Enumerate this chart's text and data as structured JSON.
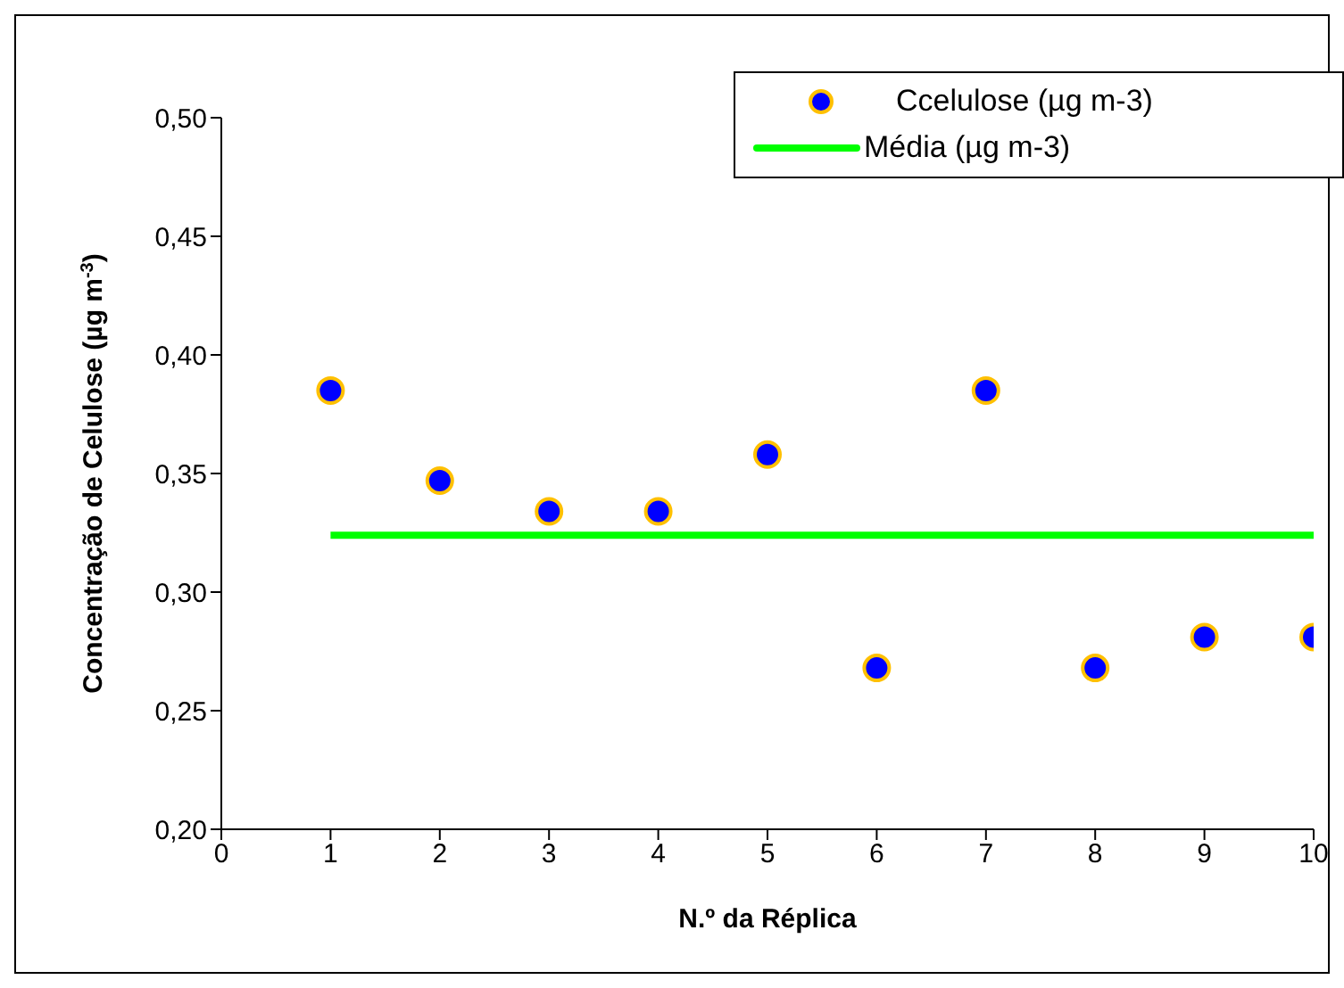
{
  "chart_data": {
    "type": "scatter",
    "xlabel": "N.º da Réplica",
    "ylabel": "Concentração de Celulose (µg m$^{-3}$)",
    "xlim": [
      0,
      10
    ],
    "xticks": [
      0,
      1,
      2,
      3,
      4,
      5,
      6,
      7,
      8,
      9,
      10
    ],
    "ylim": [
      0.2,
      0.5
    ],
    "yticks": [
      {
        "value": 0.2,
        "label": "0,20"
      },
      {
        "value": 0.25,
        "label": "0,25"
      },
      {
        "value": 0.3,
        "label": "0,30"
      },
      {
        "value": 0.35,
        "label": "0,35"
      },
      {
        "value": 0.4,
        "label": "0,40"
      },
      {
        "value": 0.45,
        "label": "0,45"
      },
      {
        "value": 0.5,
        "label": "0,50"
      }
    ],
    "grid": false,
    "legend": "top right",
    "x": [
      1,
      2,
      3,
      4,
      5,
      6,
      7,
      8,
      9,
      10
    ],
    "series": [
      {
        "name": "Ccelulose (µg m-3)",
        "color": "#0000ff",
        "marker": "circle",
        "values": [
          0.385,
          0.347,
          0.334,
          0.334,
          0.358,
          0.268,
          0.385,
          0.268,
          0.281,
          0.281
        ]
      },
      {
        "name": "Média (µg m-3)",
        "type": "line",
        "color": "#00ff00",
        "x": [
          1,
          10
        ],
        "values": [
          0.324,
          0.324
        ]
      }
    ]
  }
}
